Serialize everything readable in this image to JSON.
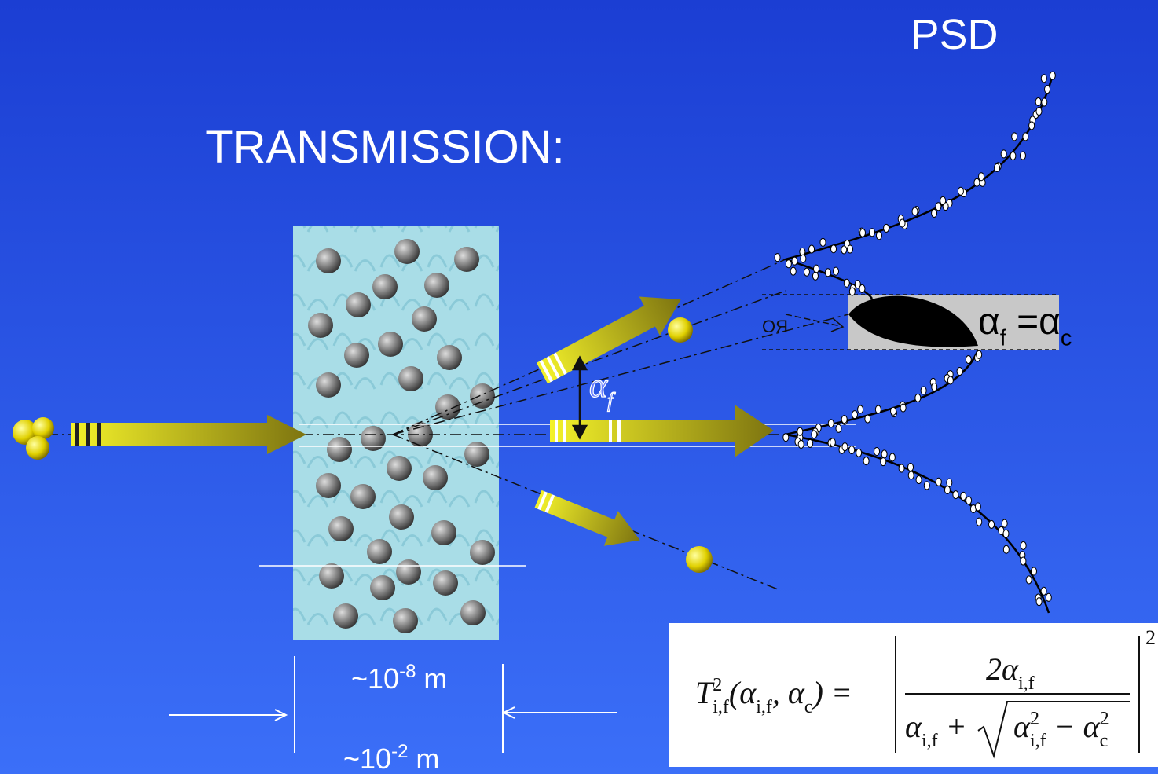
{
  "psd_label": "PSD",
  "title": "TRANSMISSION:",
  "angle_label": [
    {
      "t": "α",
      "sub": "f"
    }
  ],
  "critical_label": [
    {
      "t": "α",
      "sub": "f"
    },
    {
      "t": " =α",
      "sub": "c"
    }
  ],
  "mirrored_text": "OЯ",
  "scales": [
    {
      "base": "~10",
      "exponent": "-8",
      "unit": "m"
    },
    {
      "base": "~10",
      "exponent": "-2",
      "unit": "m"
    }
  ],
  "formula": {
    "lhs": [
      {
        "t": "T",
        "sup": "2",
        "sub": "i,f"
      },
      {
        "t": "(α",
        "sub": "i,f"
      },
      {
        "t": ", α",
        "sub": "c"
      },
      {
        "t": ") ="
      }
    ],
    "numerator": [
      {
        "t": "2α",
        "sub": "i,f"
      }
    ],
    "denominator": [
      {
        "t": "α",
        "sub": "i,f"
      },
      {
        "t": " +"
      }
    ],
    "radicand": [
      {
        "t": "α",
        "sup": "2",
        "sub": "i,f"
      },
      {
        "t": " − α",
        "sup": "2",
        "sub": "c"
      }
    ],
    "power": "2"
  }
}
